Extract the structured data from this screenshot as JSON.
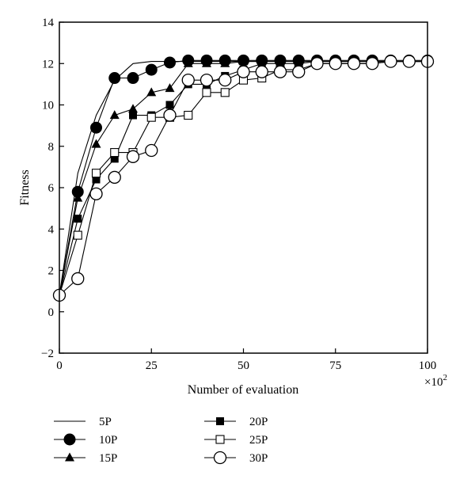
{
  "chart_data": {
    "type": "line",
    "title": "",
    "xlabel": "Number of evaluation",
    "x_multiplier_label": "×10",
    "x_multiplier_exponent": "2",
    "ylabel": "Fitness",
    "xlim": [
      0,
      100
    ],
    "ylim": [
      -2,
      14
    ],
    "x_ticks": [
      0,
      25,
      50,
      75,
      100
    ],
    "y_ticks": [
      -2,
      0,
      2,
      4,
      6,
      8,
      10,
      12,
      14
    ],
    "x_tick_labels": [
      "0",
      "25",
      "50",
      "75",
      "100"
    ],
    "y_tick_labels": [
      "−2",
      "0",
      "2",
      "4",
      "6",
      "8",
      "10",
      "12",
      "14"
    ],
    "grid": false,
    "legend_position": "bottom",
    "series": [
      {
        "name": "5P",
        "marker": "none",
        "x": [
          0,
          5,
          10,
          15,
          20,
          25,
          30,
          35,
          40,
          45,
          50,
          55,
          60,
          65,
          70,
          75,
          80,
          85,
          90,
          95,
          100
        ],
        "y": [
          0.8,
          6.7,
          9.5,
          11.2,
          12.0,
          12.1,
          12.1,
          12.1,
          12.1,
          12.1,
          12.1,
          12.1,
          12.1,
          12.1,
          12.1,
          12.1,
          12.1,
          12.1,
          12.1,
          12.1,
          12.1
        ]
      },
      {
        "name": "10P",
        "marker": "filled-circle",
        "x": [
          0,
          5,
          10,
          15,
          20,
          25,
          30,
          35,
          40,
          45,
          50,
          55,
          60,
          65,
          70,
          75,
          80,
          85,
          90,
          95,
          100
        ],
        "y": [
          0.8,
          5.8,
          8.9,
          11.3,
          11.3,
          11.7,
          12.05,
          12.15,
          12.15,
          12.15,
          12.15,
          12.15,
          12.15,
          12.15,
          12.15,
          12.15,
          12.15,
          12.15,
          12.15,
          12.15,
          12.15
        ]
      },
      {
        "name": "15P",
        "marker": "filled-triangle",
        "x": [
          0,
          5,
          10,
          15,
          20,
          25,
          30,
          35,
          40,
          45,
          50,
          55,
          60,
          65,
          70,
          75,
          80,
          85,
          90,
          95,
          100
        ],
        "y": [
          0.8,
          5.5,
          8.1,
          9.5,
          9.8,
          10.6,
          10.8,
          12.0,
          12.0,
          12.0,
          12.1,
          12.1,
          12.1,
          12.1,
          12.1,
          12.1,
          12.1,
          12.1,
          12.1,
          12.1,
          12.1
        ]
      },
      {
        "name": "20P",
        "marker": "filled-square",
        "x": [
          0,
          5,
          10,
          15,
          20,
          25,
          30,
          35,
          40,
          45,
          50,
          55,
          60,
          65,
          70,
          75,
          80,
          85,
          90,
          95,
          100
        ],
        "y": [
          0.8,
          4.5,
          6.4,
          7.4,
          9.5,
          9.5,
          10.0,
          11.0,
          11.0,
          11.4,
          11.7,
          12.0,
          12.0,
          12.0,
          12.1,
          12.1,
          12.1,
          12.1,
          12.1,
          12.1,
          12.1
        ]
      },
      {
        "name": "25P",
        "marker": "open-square",
        "x": [
          0,
          5,
          10,
          15,
          20,
          25,
          30,
          35,
          40,
          45,
          50,
          55,
          60,
          65,
          70,
          75,
          80,
          85,
          90,
          95,
          100
        ],
        "y": [
          0.8,
          3.7,
          6.7,
          7.7,
          7.7,
          9.4,
          9.4,
          9.5,
          10.6,
          10.6,
          11.2,
          11.3,
          11.7,
          11.7,
          12.0,
          12.0,
          12.0,
          12.0,
          12.1,
          12.1,
          12.1
        ]
      },
      {
        "name": "30P",
        "marker": "open-circle",
        "x": [
          0,
          5,
          10,
          15,
          20,
          25,
          30,
          35,
          40,
          45,
          50,
          55,
          60,
          65,
          70,
          75,
          80,
          85,
          90,
          95,
          100
        ],
        "y": [
          0.8,
          1.6,
          5.7,
          6.5,
          7.5,
          7.8,
          9.5,
          11.2,
          11.2,
          11.2,
          11.6,
          11.6,
          11.6,
          11.6,
          12.0,
          12.0,
          12.0,
          12.0,
          12.1,
          12.1,
          12.1
        ]
      }
    ]
  }
}
